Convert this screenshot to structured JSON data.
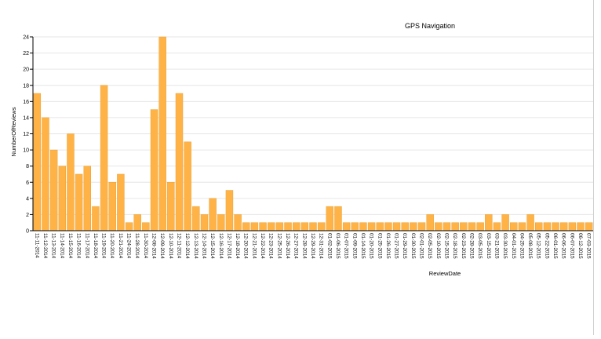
{
  "chart_data": {
    "type": "bar",
    "title": "GPS Navigation",
    "xlabel": "ReviewDate",
    "ylabel": "NumberOfReviews",
    "ylim": [
      0,
      24
    ],
    "yticks": [
      0,
      2,
      4,
      6,
      8,
      10,
      12,
      14,
      16,
      18,
      20,
      22,
      24
    ],
    "grid": true,
    "bar_color": "#ffb347",
    "bar_stroke": "#e8a237",
    "categories": [
      "11-11-2014",
      "11-12-2014",
      "11-13-2014",
      "11-14-2014",
      "11-15-2014",
      "11-16-2014",
      "11-17-2014",
      "11-18-2014",
      "11-19-2014",
      "11-20-2014",
      "11-21-2014",
      "11-24-2014",
      "11-28-2014",
      "11-30-2014",
      "12-08-2014",
      "12-09-2014",
      "12-10-2014",
      "12-11-2014",
      "12-12-2014",
      "12-13-2014",
      "12-14-2014",
      "12-15-2014",
      "12-16-2014",
      "12-17-2014",
      "12-18-2014",
      "12-20-2014",
      "12-21-2014",
      "12-22-2014",
      "12-23-2014",
      "12-25-2014",
      "12-26-2014",
      "12-27-2014",
      "12-28-2014",
      "12-29-2014",
      "12-31-2014",
      "01-02-2015",
      "01-06-2015",
      "01-07-2015",
      "01-09-2015",
      "01-14-2015",
      "01-20-2015",
      "01-25-2015",
      "01-26-2015",
      "01-27-2015",
      "01-29-2015",
      "01-30-2015",
      "02-01-2015",
      "02-05-2015",
      "02-10-2015",
      "02-15-2015",
      "02-18-2015",
      "02-23-2015",
      "02-28-2015",
      "03-05-2015",
      "03-15-2015",
      "03-21-2015",
      "03-30-2015",
      "04-01-2015",
      "04-25-2015",
      "05-08-2015",
      "05-12-2015",
      "05-22-2015",
      "06-01-2015",
      "06-06-2015",
      "06-07-2015",
      "06-12-2015",
      "07-03-2015"
    ],
    "values": [
      17,
      14,
      10,
      8,
      12,
      7,
      8,
      3,
      18,
      6,
      7,
      1,
      2,
      1,
      15,
      24,
      6,
      17,
      11,
      3,
      2,
      4,
      2,
      5,
      2,
      1,
      1,
      1,
      1,
      1,
      1,
      1,
      1,
      1,
      1,
      3,
      3,
      1,
      1,
      1,
      1,
      1,
      1,
      1,
      1,
      1,
      1,
      2,
      1,
      1,
      1,
      1,
      1,
      1,
      2,
      1,
      2,
      1,
      1,
      2,
      1,
      1,
      1,
      1,
      1,
      1,
      1
    ]
  }
}
